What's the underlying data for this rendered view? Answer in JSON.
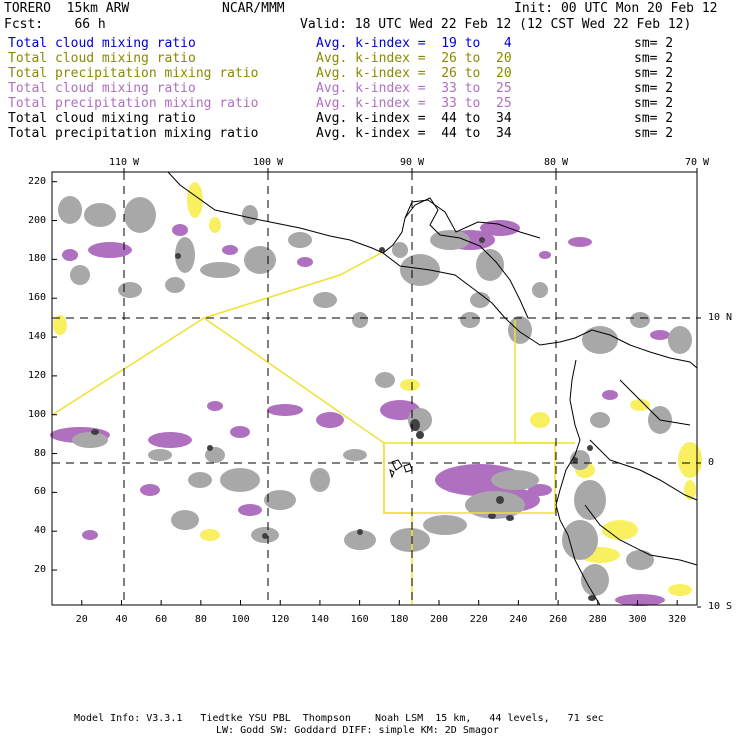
{
  "header": {
    "model": "TORERO  15km ARW",
    "org": "NCAR/MMM",
    "init": "Init: 00 UTC Mon 20 Feb 12",
    "fcst": "Fcst:    66 h",
    "valid": "Valid: 18 UTC Wed 22 Feb 12 (12 CST Wed 22 Feb 12)"
  },
  "legend": [
    {
      "field": "Total cloud mixing ratio",
      "kindex": "Avg. k-index =  19 to   4",
      "sm": "sm= 2",
      "color": "#0000cc"
    },
    {
      "field": "Total cloud mixing ratio",
      "kindex": "Avg. k-index =  26 to  20",
      "sm": "sm= 2",
      "color": "#8a8a00"
    },
    {
      "field": "Total precipitation mixing ratio",
      "kindex": "Avg. k-index =  26 to  20",
      "sm": "sm= 2",
      "color": "#8a8a00"
    },
    {
      "field": "Total cloud mixing ratio",
      "kindex": "Avg. k-index =  33 to  25",
      "sm": "sm= 2",
      "color": "#b070c0"
    },
    {
      "field": "Total precipitation mixing ratio",
      "kindex": "Avg. k-index =  33 to  25",
      "sm": "sm= 2",
      "color": "#b070c0"
    },
    {
      "field": "Total cloud mixing ratio",
      "kindex": "Avg. k-index =  44 to  34",
      "sm": "sm= 2",
      "color": "#000000"
    },
    {
      "field": "Total precipitation mixing ratio",
      "kindex": "Avg. k-index =  44 to  34",
      "sm": "sm= 2",
      "color": "#000000"
    }
  ],
  "axes": {
    "x_grid_ticks": [
      "20",
      "40",
      "60",
      "80",
      "100",
      "120",
      "140",
      "160",
      "180",
      "200",
      "220",
      "240",
      "260",
      "280",
      "300",
      "320"
    ],
    "y_grid_ticks": [
      "20",
      "40",
      "60",
      "80",
      "100",
      "120",
      "140",
      "160",
      "180",
      "200",
      "220"
    ],
    "lon_labels": [
      "110 W",
      "100 W",
      "90 W",
      "80 W",
      "70 W"
    ],
    "lat_labels": [
      "10 N",
      "0",
      "10 S"
    ]
  },
  "footer": {
    "line1": "Model Info: V3.3.1   Tiedtke YSU PBL  Thompson    Noah LSM  15 km,   44 levels,   71 sec",
    "line2": "LW: Godd SW: Goddard DIFF: simple KM: 2D Smagor"
  },
  "colors": {
    "land_outline": "#000000",
    "boxes": "#f0e030",
    "light_yellow": "#f8f060",
    "purple": "#b070c0",
    "gray": "#a8a8a8",
    "dark_gray": "#404040"
  }
}
